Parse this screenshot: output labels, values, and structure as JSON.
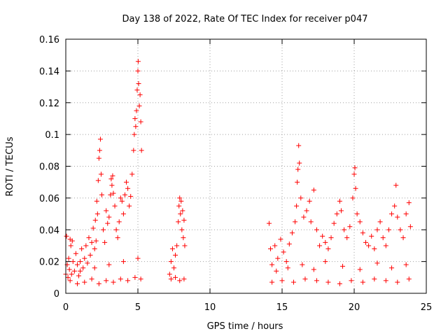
{
  "chart_data": {
    "type": "scatter",
    "title": "Day 138 of 2022, Rate Of TEC Index for receiver p047",
    "xlabel": "GPS time / hours",
    "ylabel": "ROTI / TECUs",
    "xlim": [
      0,
      25
    ],
    "ylim": [
      0,
      0.16
    ],
    "xticks": [
      "0",
      "5",
      "10",
      "15",
      "20",
      "25"
    ],
    "yticks": [
      "0",
      "0.02",
      "0.04",
      "0.06",
      "0.08",
      "0.1",
      "0.12",
      "0.14",
      "0.16"
    ],
    "grid": true,
    "marker": "+",
    "color": "#ff0000",
    "series": [
      {
        "name": "ROTI",
        "points": [
          [
            0.0,
            0.012
          ],
          [
            0.05,
            0.036
          ],
          [
            0.1,
            0.018
          ],
          [
            0.15,
            0.01
          ],
          [
            0.2,
            0.022
          ],
          [
            0.25,
            0.015
          ],
          [
            0.3,
            0.034
          ],
          [
            0.35,
            0.03
          ],
          [
            0.4,
            0.012
          ],
          [
            0.45,
            0.033
          ],
          [
            0.5,
            0.02
          ],
          [
            0.6,
            0.014
          ],
          [
            0.7,
            0.025
          ],
          [
            0.8,
            0.018
          ],
          [
            0.9,
            0.011
          ],
          [
            1.0,
            0.02
          ],
          [
            1.1,
            0.028
          ],
          [
            1.2,
            0.016
          ],
          [
            1.3,
            0.022
          ],
          [
            1.4,
            0.03
          ],
          [
            1.5,
            0.019
          ],
          [
            1.6,
            0.035
          ],
          [
            1.7,
            0.024
          ],
          [
            1.8,
            0.032
          ],
          [
            1.9,
            0.041
          ],
          [
            2.0,
            0.028
          ],
          [
            2.05,
            0.046
          ],
          [
            2.1,
            0.033
          ],
          [
            2.15,
            0.058
          ],
          [
            2.2,
            0.05
          ],
          [
            2.25,
            0.071
          ],
          [
            2.3,
            0.085
          ],
          [
            2.35,
            0.09
          ],
          [
            2.4,
            0.097
          ],
          [
            2.45,
            0.075
          ],
          [
            2.5,
            0.062
          ],
          [
            2.6,
            0.04
          ],
          [
            2.7,
            0.032
          ],
          [
            2.8,
            0.052
          ],
          [
            2.9,
            0.044
          ],
          [
            3.0,
            0.048
          ],
          [
            3.1,
            0.062
          ],
          [
            3.15,
            0.072
          ],
          [
            3.2,
            0.068
          ],
          [
            3.25,
            0.074
          ],
          [
            3.3,
            0.063
          ],
          [
            3.4,
            0.055
          ],
          [
            3.5,
            0.04
          ],
          [
            3.6,
            0.035
          ],
          [
            3.7,
            0.045
          ],
          [
            3.8,
            0.06
          ],
          [
            3.9,
            0.058
          ],
          [
            4.0,
            0.05
          ],
          [
            4.1,
            0.062
          ],
          [
            4.2,
            0.07
          ],
          [
            4.3,
            0.066
          ],
          [
            4.4,
            0.055
          ],
          [
            4.5,
            0.061
          ],
          [
            4.6,
            0.075
          ],
          [
            4.7,
            0.09
          ],
          [
            4.75,
            0.1
          ],
          [
            4.8,
            0.11
          ],
          [
            4.85,
            0.105
          ],
          [
            4.9,
            0.115
          ],
          [
            4.95,
            0.128
          ],
          [
            5.0,
            0.14
          ],
          [
            5.02,
            0.146
          ],
          [
            5.05,
            0.132
          ],
          [
            5.1,
            0.118
          ],
          [
            5.15,
            0.125
          ],
          [
            5.2,
            0.108
          ],
          [
            5.25,
            0.09
          ],
          [
            0.3,
            0.008
          ],
          [
            0.8,
            0.006
          ],
          [
            1.3,
            0.007
          ],
          [
            1.8,
            0.009
          ],
          [
            2.3,
            0.006
          ],
          [
            2.8,
            0.008
          ],
          [
            3.3,
            0.007
          ],
          [
            3.8,
            0.009
          ],
          [
            4.3,
            0.008
          ],
          [
            4.8,
            0.01
          ],
          [
            5.2,
            0.009
          ],
          [
            1.0,
            0.014
          ],
          [
            2.0,
            0.016
          ],
          [
            3.0,
            0.018
          ],
          [
            4.0,
            0.02
          ],
          [
            5.0,
            0.022
          ],
          [
            7.2,
            0.012
          ],
          [
            7.3,
            0.02
          ],
          [
            7.4,
            0.028
          ],
          [
            7.5,
            0.016
          ],
          [
            7.6,
            0.024
          ],
          [
            7.7,
            0.03
          ],
          [
            7.8,
            0.045
          ],
          [
            7.85,
            0.055
          ],
          [
            7.9,
            0.06
          ],
          [
            7.95,
            0.05
          ],
          [
            8.0,
            0.058
          ],
          [
            8.05,
            0.04
          ],
          [
            8.1,
            0.052
          ],
          [
            8.15,
            0.035
          ],
          [
            8.2,
            0.046
          ],
          [
            8.25,
            0.03
          ],
          [
            7.3,
            0.009
          ],
          [
            7.6,
            0.01
          ],
          [
            7.9,
            0.008
          ],
          [
            8.2,
            0.009
          ],
          [
            14.1,
            0.044
          ],
          [
            14.2,
            0.028
          ],
          [
            14.3,
            0.018
          ],
          [
            14.5,
            0.03
          ],
          [
            14.7,
            0.022
          ],
          [
            14.9,
            0.034
          ],
          [
            15.1,
            0.026
          ],
          [
            15.3,
            0.02
          ],
          [
            15.5,
            0.031
          ],
          [
            15.7,
            0.038
          ],
          [
            15.9,
            0.045
          ],
          [
            16.0,
            0.055
          ],
          [
            16.05,
            0.07
          ],
          [
            16.1,
            0.078
          ],
          [
            16.15,
            0.093
          ],
          [
            16.2,
            0.082
          ],
          [
            16.3,
            0.06
          ],
          [
            16.5,
            0.048
          ],
          [
            16.7,
            0.052
          ],
          [
            16.9,
            0.058
          ],
          [
            17.0,
            0.045
          ],
          [
            17.2,
            0.065
          ],
          [
            17.4,
            0.04
          ],
          [
            17.6,
            0.03
          ],
          [
            17.8,
            0.036
          ],
          [
            18.0,
            0.032
          ],
          [
            18.2,
            0.028
          ],
          [
            18.4,
            0.035
          ],
          [
            18.6,
            0.044
          ],
          [
            18.8,
            0.05
          ],
          [
            19.0,
            0.058
          ],
          [
            19.1,
            0.052
          ],
          [
            19.3,
            0.04
          ],
          [
            19.5,
            0.035
          ],
          [
            19.7,
            0.042
          ],
          [
            19.9,
            0.06
          ],
          [
            20.0,
            0.075
          ],
          [
            20.05,
            0.079
          ],
          [
            20.1,
            0.066
          ],
          [
            20.2,
            0.05
          ],
          [
            20.4,
            0.045
          ],
          [
            20.6,
            0.038
          ],
          [
            20.8,
            0.032
          ],
          [
            21.0,
            0.03
          ],
          [
            21.2,
            0.036
          ],
          [
            21.4,
            0.028
          ],
          [
            21.6,
            0.04
          ],
          [
            21.8,
            0.045
          ],
          [
            22.0,
            0.035
          ],
          [
            22.2,
            0.03
          ],
          [
            22.4,
            0.04
          ],
          [
            22.6,
            0.05
          ],
          [
            22.8,
            0.055
          ],
          [
            22.9,
            0.068
          ],
          [
            23.0,
            0.048
          ],
          [
            23.2,
            0.04
          ],
          [
            23.4,
            0.035
          ],
          [
            23.6,
            0.05
          ],
          [
            23.8,
            0.057
          ],
          [
            23.9,
            0.042
          ],
          [
            14.3,
            0.007
          ],
          [
            15.0,
            0.008
          ],
          [
            15.8,
            0.007
          ],
          [
            16.6,
            0.009
          ],
          [
            17.4,
            0.008
          ],
          [
            18.2,
            0.007
          ],
          [
            19.0,
            0.006
          ],
          [
            19.8,
            0.008
          ],
          [
            20.6,
            0.007
          ],
          [
            21.4,
            0.009
          ],
          [
            22.2,
            0.008
          ],
          [
            23.0,
            0.007
          ],
          [
            23.8,
            0.009
          ],
          [
            14.6,
            0.014
          ],
          [
            15.4,
            0.016
          ],
          [
            16.4,
            0.018
          ],
          [
            17.2,
            0.015
          ],
          [
            18.0,
            0.02
          ],
          [
            19.2,
            0.017
          ],
          [
            20.4,
            0.015
          ],
          [
            21.6,
            0.019
          ],
          [
            22.6,
            0.016
          ],
          [
            23.6,
            0.018
          ]
        ]
      }
    ]
  }
}
